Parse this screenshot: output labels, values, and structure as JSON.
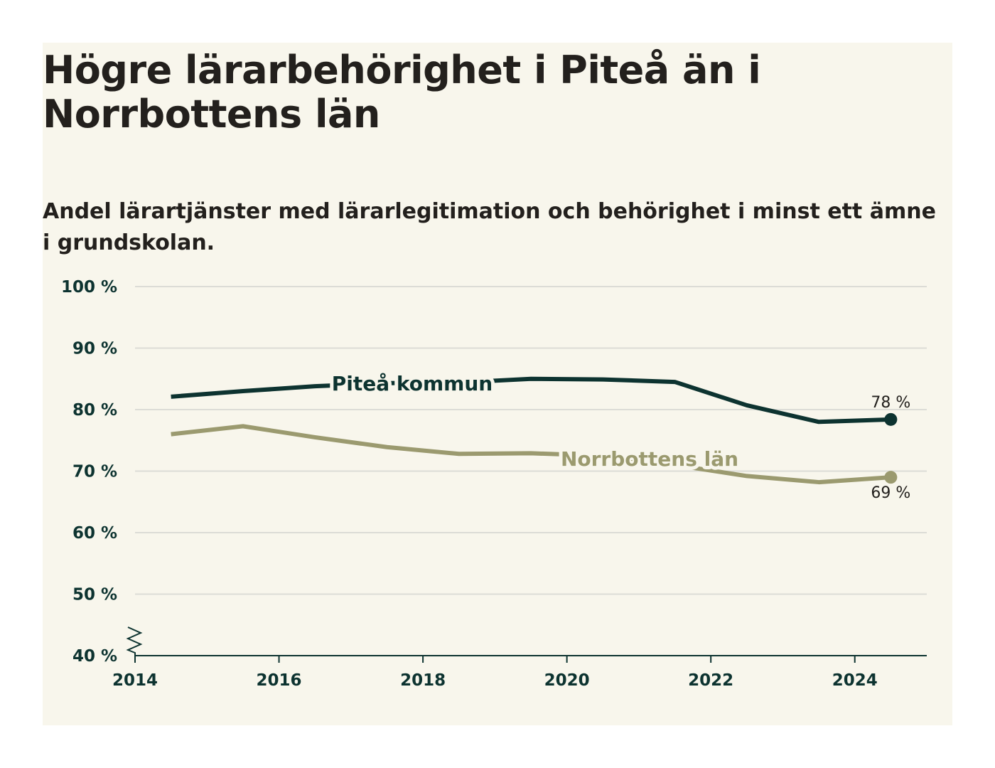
{
  "title": "Högre lärarbehörighet i Piteå än i Norrbottens län",
  "subtitle": "Andel lärartjänster med lärarlegitimation och behörighet i minst ett ämne i grundskolan.",
  "colors": {
    "background": "#f8f6ec",
    "pitea": "#0d3330",
    "norrbotten": "#9b9a6f",
    "grid": "#dcdcd6",
    "axis": "#0d3330"
  },
  "chart_data": {
    "type": "line",
    "x_ticks": [
      "2014",
      "2016",
      "2018",
      "2020",
      "2022",
      "2024"
    ],
    "y_ticks": [
      "40 %",
      "50 %",
      "60 %",
      "70 %",
      "80 %",
      "90 %",
      "100 %"
    ],
    "xlim": [
      2014,
      2025
    ],
    "ylim": [
      40,
      100
    ],
    "y_axis_broken": true,
    "grid": true,
    "series": [
      {
        "name": "Piteå kommun",
        "color": "#0d3330",
        "x": [
          2014.5,
          2015.5,
          2016.5,
          2017.5,
          2018.5,
          2019.5,
          2020.5,
          2021.5,
          2022.5,
          2023.5,
          2024.5
        ],
        "values": [
          82.1,
          83.0,
          83.8,
          84.3,
          84.4,
          85.0,
          84.9,
          84.5,
          80.7,
          78.0,
          78.4
        ],
        "end_label": "78 %"
      },
      {
        "name": "Norrbottens län",
        "color": "#9b9a6f",
        "x": [
          2014.5,
          2015.5,
          2016.5,
          2017.5,
          2018.5,
          2019.5,
          2020.5,
          2021.5,
          2022.5,
          2023.5,
          2024.5
        ],
        "values": [
          76.0,
          77.3,
          75.5,
          73.9,
          72.8,
          72.9,
          72.5,
          71.0,
          69.2,
          68.2,
          69.0
        ],
        "end_label": "69 %"
      }
    ]
  }
}
